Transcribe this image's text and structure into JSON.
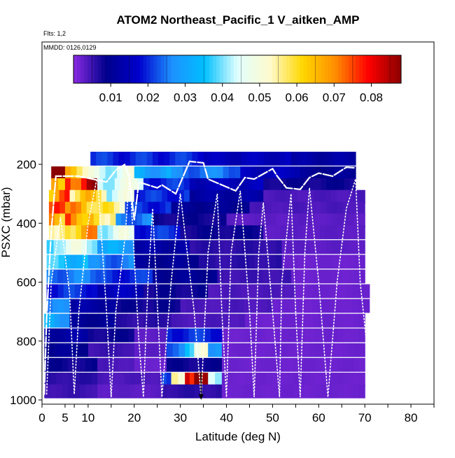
{
  "chart_data": {
    "type": "heatmap",
    "title": "ATOM2 Northeast_Pacific_1 V_aitken_AMP",
    "subtitle_flights": "Flts: 1,2",
    "subtitle_dates": "MMDD: 0126,0129",
    "xlabel": "Latitude (deg N)",
    "ylabel": "PSXC (mbar)",
    "xlim": [
      0,
      85
    ],
    "ylim": [
      1000,
      160
    ],
    "x_ticks": [
      0,
      5,
      10,
      20,
      30,
      40,
      50,
      60,
      70,
      80
    ],
    "x_minor_ticks": [
      0,
      5,
      7,
      10,
      15,
      20,
      25,
      30,
      35,
      40,
      45,
      50,
      55,
      60,
      65,
      70,
      75,
      80,
      85
    ],
    "y_ticks": [
      200,
      400,
      600,
      800,
      1000
    ],
    "colorbar": {
      "min": 0.0,
      "max": 0.088,
      "ticks": [
        0.01,
        0.02,
        0.03,
        0.04,
        0.05,
        0.06,
        0.07,
        0.08
      ],
      "tick_labels": [
        "0.01",
        "0.02",
        "0.03",
        "0.04",
        "0.05",
        "0.06",
        "0.07",
        "0.08"
      ],
      "stops": [
        "#8a2be2",
        "#00008b",
        "#0000cd",
        "#1e90ff",
        "#00bfff",
        "#e0ffff",
        "#fffacd",
        "#ffd700",
        "#ff8c00",
        "#ff0000",
        "#8b0000"
      ]
    },
    "row_pressures": [
      180,
      230,
      270,
      310,
      350,
      390,
      430,
      480,
      530,
      580,
      630,
      680,
      730,
      780,
      830,
      880,
      930,
      970
    ],
    "bins_note": "each segment: [row_index, lat_start, lat_end, value]",
    "segments": [
      [
        0,
        10.5,
        35,
        0.02
      ],
      [
        0,
        35,
        54,
        0.015
      ],
      [
        0,
        54,
        68,
        0.012
      ],
      [
        1,
        2,
        5,
        0.085
      ],
      [
        1,
        5,
        10,
        0.06
      ],
      [
        1,
        10,
        20,
        0.045
      ],
      [
        1,
        20,
        28,
        0.03
      ],
      [
        1,
        28,
        43,
        0.025
      ],
      [
        1,
        43,
        56,
        0.015
      ],
      [
        1,
        56,
        68,
        0.01
      ],
      [
        2,
        2,
        5,
        0.07
      ],
      [
        2,
        5,
        12,
        0.08
      ],
      [
        2,
        12,
        22,
        0.045
      ],
      [
        2,
        22,
        32,
        0.02
      ],
      [
        2,
        32,
        48,
        0.015
      ],
      [
        2,
        48,
        68,
        0.008
      ],
      [
        3,
        1.5,
        6,
        0.07
      ],
      [
        3,
        6,
        14,
        0.06
      ],
      [
        3,
        14,
        20,
        0.045
      ],
      [
        3,
        20,
        32,
        0.02
      ],
      [
        3,
        32,
        48,
        0.012
      ],
      [
        3,
        48,
        70,
        0.004
      ],
      [
        4,
        1.5,
        5,
        0.07
      ],
      [
        4,
        5,
        12,
        0.065
      ],
      [
        4,
        12,
        18,
        0.055
      ],
      [
        4,
        18,
        28,
        0.02
      ],
      [
        4,
        28,
        45,
        0.01
      ],
      [
        4,
        45,
        70,
        0.004
      ],
      [
        5,
        1.5,
        5,
        0.065
      ],
      [
        5,
        5,
        10,
        0.07
      ],
      [
        5,
        10,
        16,
        0.06
      ],
      [
        5,
        16,
        24,
        0.025
      ],
      [
        5,
        24,
        40,
        0.008
      ],
      [
        5,
        40,
        70,
        0.003
      ],
      [
        6,
        1.5,
        5,
        0.06
      ],
      [
        6,
        5,
        12,
        0.065
      ],
      [
        6,
        12,
        20,
        0.045
      ],
      [
        6,
        20,
        30,
        0.02
      ],
      [
        6,
        30,
        48,
        0.008
      ],
      [
        6,
        48,
        70,
        0.003
      ],
      [
        7,
        1,
        4,
        0.04
      ],
      [
        7,
        4,
        12,
        0.045
      ],
      [
        7,
        12,
        20,
        0.03
      ],
      [
        7,
        20,
        32,
        0.012
      ],
      [
        7,
        32,
        52,
        0.006
      ],
      [
        7,
        52,
        70,
        0.003
      ],
      [
        8,
        1,
        10,
        0.035
      ],
      [
        8,
        10,
        20,
        0.025
      ],
      [
        8,
        20,
        34,
        0.01
      ],
      [
        8,
        34,
        52,
        0.006
      ],
      [
        8,
        52,
        70,
        0.002
      ],
      [
        9,
        1,
        14,
        0.025
      ],
      [
        9,
        14,
        24,
        0.02
      ],
      [
        9,
        24,
        38,
        0.01
      ],
      [
        9,
        38,
        54,
        0.005
      ],
      [
        9,
        54,
        70,
        0.002
      ],
      [
        10,
        1,
        12,
        0.02
      ],
      [
        10,
        12,
        22,
        0.015
      ],
      [
        10,
        22,
        36,
        0.008
      ],
      [
        10,
        36,
        55,
        0.004
      ],
      [
        10,
        55,
        71,
        0.002
      ],
      [
        11,
        1,
        6,
        0.025
      ],
      [
        11,
        6,
        16,
        0.012
      ],
      [
        11,
        16,
        30,
        0.008
      ],
      [
        11,
        30,
        50,
        0.004
      ],
      [
        11,
        50,
        71,
        0.002
      ],
      [
        12,
        0.5,
        6,
        0.03
      ],
      [
        12,
        6,
        16,
        0.01
      ],
      [
        12,
        16,
        28,
        0.006
      ],
      [
        12,
        28,
        44,
        0.004
      ],
      [
        12,
        44,
        70,
        0.002
      ],
      [
        13,
        0.5,
        10,
        0.012
      ],
      [
        13,
        10,
        20,
        0.008
      ],
      [
        13,
        20,
        27,
        0.003
      ],
      [
        13,
        27,
        39,
        0.02
      ],
      [
        13,
        39,
        70,
        0.002
      ],
      [
        14,
        0.5,
        10,
        0.01
      ],
      [
        14,
        10,
        20,
        0.005
      ],
      [
        14,
        20,
        27,
        0.003
      ],
      [
        14,
        27,
        31,
        0.025
      ],
      [
        14,
        31,
        33,
        0.04
      ],
      [
        14,
        33,
        36,
        0.055
      ],
      [
        14,
        36,
        39,
        0.03
      ],
      [
        14,
        39,
        70,
        0.002
      ],
      [
        15,
        0.5,
        12,
        0.008
      ],
      [
        15,
        12,
        20,
        0.004
      ],
      [
        15,
        20,
        27,
        0.002
      ],
      [
        15,
        27,
        39,
        0.008
      ],
      [
        15,
        39,
        70,
        0.002
      ],
      [
        16,
        0.5,
        12,
        0.006
      ],
      [
        16,
        12,
        26,
        0.004
      ],
      [
        16,
        26,
        28,
        0.02
      ],
      [
        16,
        28,
        31,
        0.05
      ],
      [
        16,
        31,
        33,
        0.075
      ],
      [
        16,
        33,
        36,
        0.085
      ],
      [
        16,
        36,
        39,
        0.04
      ],
      [
        16,
        39,
        70,
        0.002
      ],
      [
        17,
        0.5,
        12,
        0.005
      ],
      [
        17,
        12,
        26,
        0.003
      ],
      [
        17,
        26,
        39,
        0.006
      ],
      [
        17,
        39,
        70,
        0.002
      ]
    ],
    "flight_tracks": [
      {
        "style": "solid",
        "points": [
          [
            0.5,
            980
          ],
          [
            1,
            720
          ],
          [
            2,
            430
          ],
          [
            3,
            240
          ],
          [
            8,
            240
          ],
          [
            14,
            260
          ],
          [
            16,
            220
          ],
          [
            18,
            200
          ],
          [
            19,
            250
          ],
          [
            20,
            390
          ],
          [
            21,
            260
          ],
          [
            25,
            280
          ],
          [
            26,
            270
          ],
          [
            29,
            300
          ],
          [
            32,
            190
          ],
          [
            35,
            195
          ],
          [
            36,
            250
          ],
          [
            39,
            270
          ],
          [
            42,
            290
          ],
          [
            44,
            245
          ],
          [
            46,
            250
          ],
          [
            50,
            215
          ],
          [
            51,
            240
          ],
          [
            53,
            280
          ],
          [
            56,
            285
          ],
          [
            58,
            245
          ],
          [
            60,
            230
          ],
          [
            63,
            240
          ],
          [
            66,
            210
          ],
          [
            68,
            212
          ]
        ]
      },
      {
        "style": "dotted",
        "points": [
          [
            1,
            980
          ],
          [
            2,
            600
          ],
          [
            4,
            380
          ],
          [
            6,
            640
          ],
          [
            7,
            980
          ],
          [
            8,
            700
          ],
          [
            10,
            400
          ],
          [
            12,
            240
          ],
          [
            14,
            700
          ],
          [
            15,
            990
          ],
          [
            16,
            700
          ],
          [
            18,
            450
          ],
          [
            19,
            230
          ],
          [
            21,
            800
          ],
          [
            22,
            990
          ],
          [
            23,
            600
          ],
          [
            24,
            350
          ],
          [
            26,
            990
          ],
          [
            28,
            600
          ],
          [
            30,
            300
          ],
          [
            33,
            700
          ],
          [
            34.5,
            990
          ]
        ]
      },
      {
        "style": "dotted",
        "points": [
          [
            34.5,
            990
          ],
          [
            36,
            500
          ],
          [
            38,
            300
          ],
          [
            39,
            700
          ],
          [
            40,
            990
          ],
          [
            41,
            500
          ],
          [
            43,
            290
          ],
          [
            45,
            700
          ],
          [
            46,
            990
          ],
          [
            47,
            500
          ],
          [
            48,
            330
          ],
          [
            50,
            700
          ],
          [
            51.5,
            990
          ],
          [
            52,
            600
          ],
          [
            54,
            300
          ],
          [
            55,
            700
          ],
          [
            56,
            990
          ],
          [
            57,
            500
          ],
          [
            58,
            280
          ],
          [
            60,
            600
          ],
          [
            62,
            990
          ],
          [
            64,
            600
          ],
          [
            66,
            350
          ],
          [
            68,
            250
          ],
          [
            69,
            600
          ],
          [
            71,
            900
          ]
        ]
      }
    ],
    "marker": {
      "lat": 34.5,
      "psxc": 990
    }
  }
}
